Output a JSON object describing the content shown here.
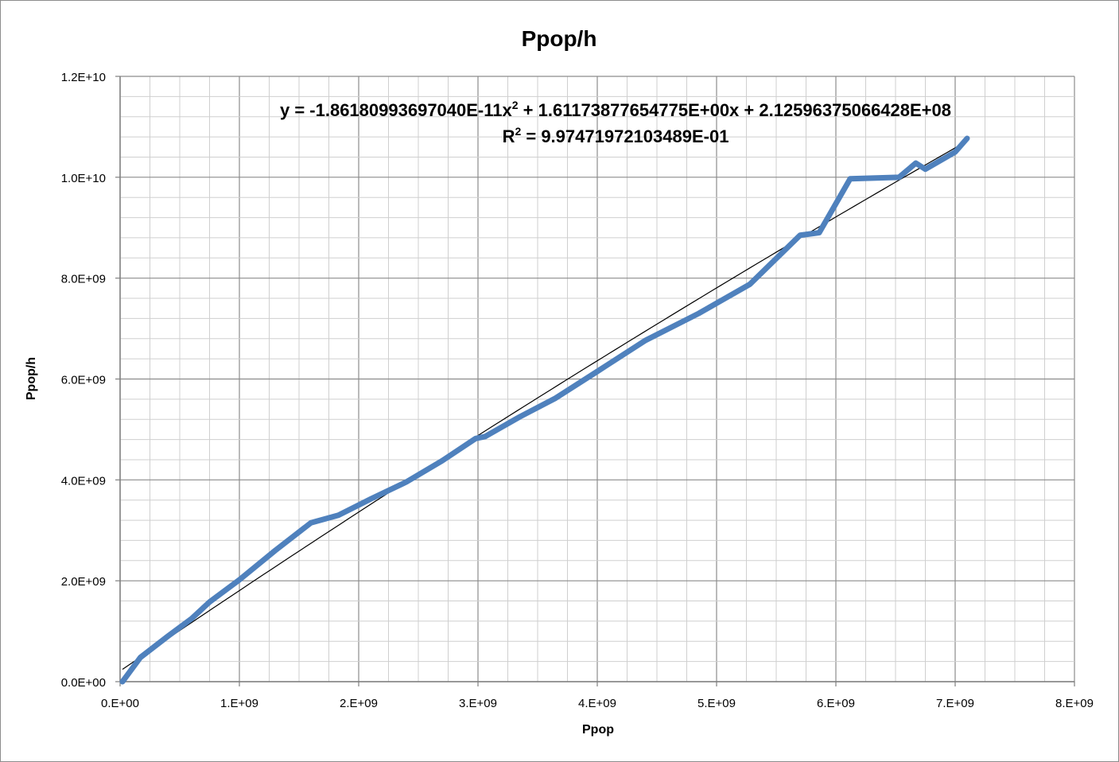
{
  "chart_data": {
    "type": "line",
    "title": "Ppop/h",
    "xlabel": "Ppop",
    "ylabel": "Ppop/h",
    "xlim": [
      0,
      8000000000
    ],
    "ylim": [
      0,
      12000000000
    ],
    "x_ticks": [
      "0.E+00",
      "1.E+09",
      "2.E+09",
      "3.E+09",
      "4.E+09",
      "5.E+09",
      "6.E+09",
      "7.E+09",
      "8.E+09"
    ],
    "y_ticks": [
      "0.0E+00",
      "2.0E+09",
      "4.0E+09",
      "6.0E+09",
      "8.0E+09",
      "1.0E+10",
      "1.2E+10"
    ],
    "grid": true,
    "trendline": {
      "type": "polynomial-2",
      "coefficients": {
        "a": -1.8618099369704e-11,
        "b": 1.61173877654775,
        "c": 212596375.066428
      },
      "equation_text": {
        "prefix": "y = -1.86180993697040E-11x",
        "sup": "2",
        "suffix": " + 1.61173877654775E+00x + 2.12596375066428E+08"
      },
      "r2_text": {
        "prefix": "R",
        "sup": "2",
        "suffix": " = 9.97471972103489E-01"
      },
      "color": "#000000"
    },
    "series": [
      {
        "color": "#4f81bd",
        "points": [
          [
            20000000,
            0
          ],
          [
            170000000,
            480000000
          ],
          [
            400000000,
            900000000
          ],
          [
            600000000,
            1250000000
          ],
          [
            750000000,
            1580000000
          ],
          [
            1000000000,
            2020000000
          ],
          [
            1300000000,
            2600000000
          ],
          [
            1600000000,
            3150000000
          ],
          [
            1830000000,
            3300000000
          ],
          [
            2100000000,
            3620000000
          ],
          [
            2400000000,
            3960000000
          ],
          [
            2700000000,
            4380000000
          ],
          [
            2980000000,
            4820000000
          ],
          [
            3060000000,
            4860000000
          ],
          [
            3350000000,
            5250000000
          ],
          [
            3650000000,
            5620000000
          ],
          [
            4000000000,
            6150000000
          ],
          [
            4400000000,
            6760000000
          ],
          [
            4850000000,
            7300000000
          ],
          [
            5280000000,
            7880000000
          ],
          [
            5700000000,
            8850000000
          ],
          [
            5860000000,
            8900000000
          ],
          [
            6120000000,
            9970000000
          ],
          [
            6530000000,
            10000000000
          ],
          [
            6670000000,
            10280000000
          ],
          [
            6750000000,
            10160000000
          ],
          [
            7000000000,
            10500000000
          ],
          [
            7100000000,
            10770000000
          ]
        ]
      }
    ]
  }
}
